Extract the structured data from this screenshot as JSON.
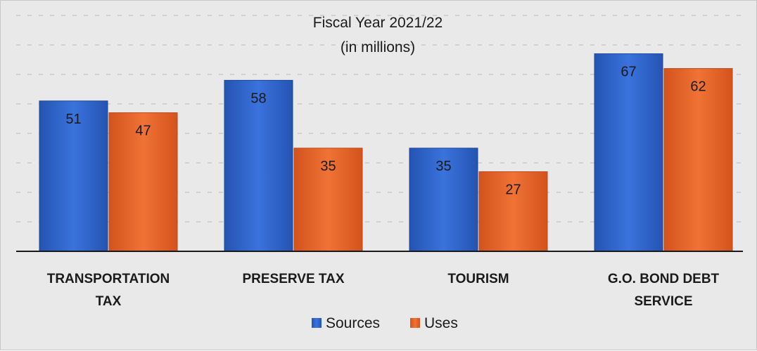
{
  "chart_data": {
    "type": "bar",
    "title": "Fiscal Year 2021/22",
    "subtitle": "(in millions)",
    "categories": [
      [
        "TRANSPORTATION",
        "TAX"
      ],
      [
        "PRESERVE TAX"
      ],
      [
        "TOURISM"
      ],
      [
        "G.O. BOND DEBT",
        "SERVICE"
      ]
    ],
    "series": [
      {
        "name": "Sources",
        "values": [
          51,
          58,
          35,
          67
        ],
        "color": "#2e62c9"
      },
      {
        "name": "Uses",
        "values": [
          47,
          35,
          27,
          62
        ],
        "color": "#e8622a"
      }
    ],
    "ylim": [
      0,
      85
    ],
    "grid": true,
    "legend": "bottom",
    "data_labels": true
  }
}
